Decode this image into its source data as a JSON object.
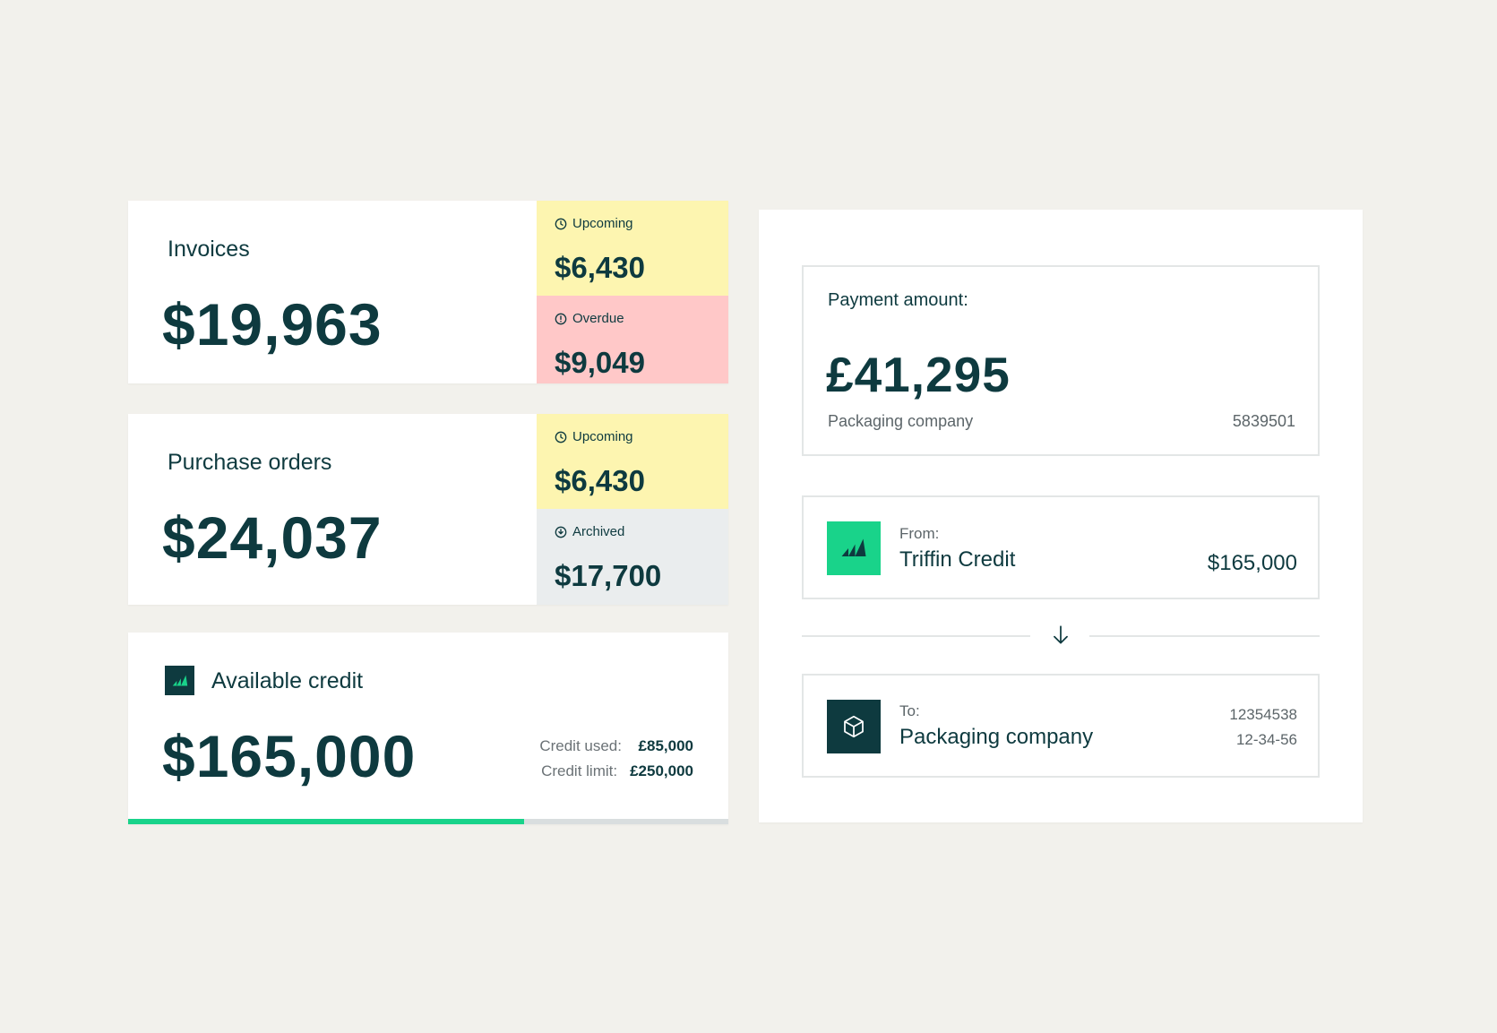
{
  "invoices": {
    "title": "Invoices",
    "total": "$19,963",
    "upcoming": {
      "label": "Upcoming",
      "value": "$6,430",
      "color": "#fdf5b0",
      "icon": "clock-icon"
    },
    "overdue": {
      "label": "Overdue",
      "value": "$9,049",
      "color": "#ffc8c8",
      "icon": "alert-circle-icon"
    }
  },
  "purchase_orders": {
    "title": "Purchase orders",
    "total": "$24,037",
    "upcoming": {
      "label": "Upcoming",
      "value": "$6,430",
      "color": "#fdf5b0",
      "icon": "clock-icon"
    },
    "archived": {
      "label": "Archived",
      "value": "$17,700",
      "color": "#eaedee",
      "icon": "archive-circle-icon"
    }
  },
  "credit": {
    "title": "Available credit",
    "total": "$165,000",
    "used_label": "Credit used:",
    "used_value": "£85,000",
    "limit_label": "Credit limit:",
    "limit_value": "£250,000",
    "progress_fraction": 0.66,
    "bar_color": "#19d38a"
  },
  "payment": {
    "amount_label": "Payment amount:",
    "amount": "£41,295",
    "company": "Packaging company",
    "reference": "5839501",
    "from": {
      "label": "From:",
      "name": "Triffin Credit",
      "amount": "$165,000",
      "icon": "triffin-logo-icon",
      "color": "#19d38a"
    },
    "to": {
      "label": "To:",
      "name": "Packaging company",
      "account": "12354538",
      "sort_code": "12-34-56",
      "icon": "package-box-icon",
      "color": "#0e3a3f"
    }
  }
}
